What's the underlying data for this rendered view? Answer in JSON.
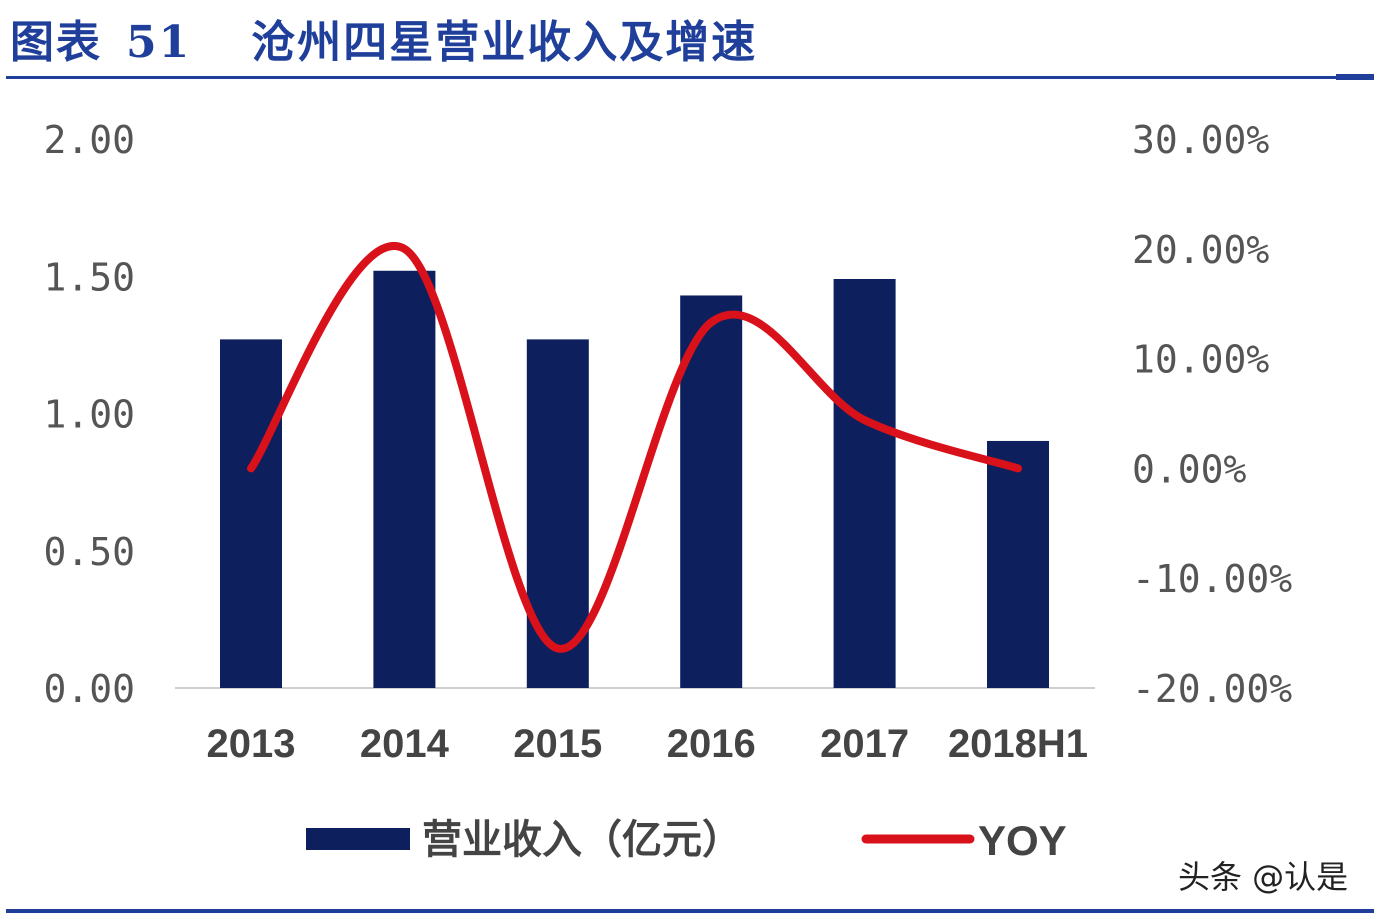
{
  "title": {
    "label": "图表",
    "number": "51",
    "text": "沧州四星营业收入及增速"
  },
  "watermark": "头条 @认是",
  "colors": {
    "bar": "#0d1f5c",
    "line": "#d9111a",
    "accent": "#1f3f9a"
  },
  "chart_data": {
    "type": "bar+line",
    "categories": [
      "2013",
      "2014",
      "2015",
      "2016",
      "2017",
      "2018H1"
    ],
    "series": [
      {
        "name": "营业收入（亿元）",
        "type": "bar",
        "axis": "left",
        "values": [
          1.27,
          1.52,
          1.27,
          1.43,
          1.49,
          0.9
        ]
      },
      {
        "name": "YOY",
        "type": "line",
        "axis": "right",
        "smooth": true,
        "values": [
          0.0,
          20.0,
          -16.4,
          13.3,
          4.4,
          0.0
        ]
      }
    ],
    "left_axis": {
      "ylim": [
        0,
        2
      ],
      "ticks": [
        "0.00",
        "0.50",
        "1.00",
        "1.50",
        "2.00"
      ]
    },
    "right_axis": {
      "ylim": [
        -20,
        30
      ],
      "ticks": [
        "-20.00%",
        "-10.00%",
        "0.00%",
        "10.00%",
        "20.00%",
        "30.00%"
      ]
    },
    "grid": false,
    "legend": "bottom"
  }
}
